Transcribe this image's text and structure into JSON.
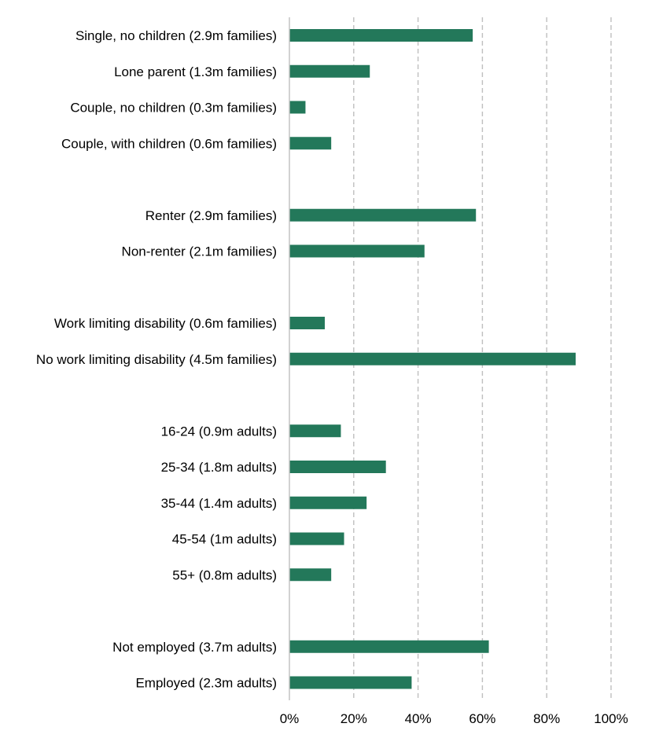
{
  "chart_data": {
    "type": "bar",
    "orientation": "horizontal",
    "title": "",
    "xlabel": "",
    "ylabel": "",
    "xlim": [
      0,
      100
    ],
    "x_ticks": [
      "0%",
      "20%",
      "40%",
      "60%",
      "80%",
      "100%"
    ],
    "grid": true,
    "legend": "none",
    "bar_color": "#23785a",
    "groups": [
      {
        "categories": [
          "Single, no children (2.9m families)",
          "Lone parent (1.3m families)",
          "Couple, no children (0.3m families)",
          "Couple, with children (0.6m families)"
        ],
        "values": [
          57,
          25,
          5,
          13
        ]
      },
      {
        "categories": [
          "Renter (2.9m families)",
          "Non-renter (2.1m families)"
        ],
        "values": [
          58,
          42
        ]
      },
      {
        "categories": [
          "Work limiting disability (0.6m families)",
          "No work limiting disability (4.5m families)"
        ],
        "values": [
          11,
          89
        ]
      },
      {
        "categories": [
          "16-24 (0.9m adults)",
          "25-34 (1.8m adults)",
          "35-44 (1.4m adults)",
          "45-54 (1m adults)",
          "55+ (0.8m adults)"
        ],
        "values": [
          16,
          30,
          24,
          17,
          13
        ]
      },
      {
        "categories": [
          "Not employed (3.7m adults)",
          "Employed (2.3m adults)"
        ],
        "values": [
          62,
          38
        ]
      }
    ]
  }
}
